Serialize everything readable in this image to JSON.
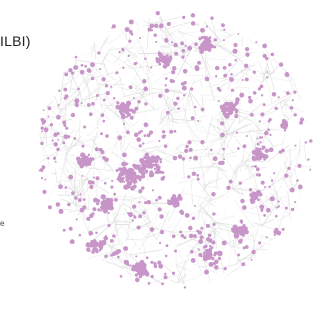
{
  "figure": {
    "title_fragment": "ILBI)",
    "side_label_fragment": "e"
  },
  "colors": {
    "background": "#ffffff",
    "node": "#c895c8",
    "edge": "#dcdcdc",
    "text": "#222222"
  }
}
